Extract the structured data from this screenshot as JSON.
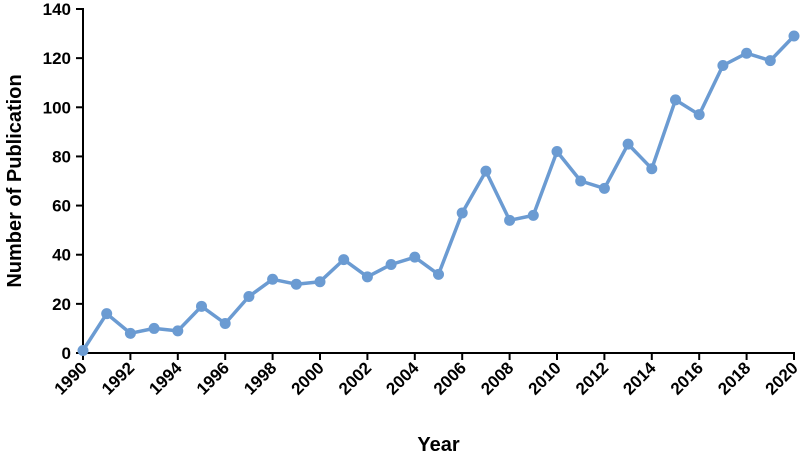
{
  "chart_data": {
    "type": "line",
    "xlabel": "Year",
    "ylabel": "Number of Publication",
    "ylim": [
      0,
      140
    ],
    "xlim": [
      1990,
      2020
    ],
    "y_ticks": [
      0,
      20,
      40,
      60,
      80,
      100,
      120,
      140
    ],
    "x_ticks": [
      1990,
      1992,
      1994,
      1996,
      1998,
      2000,
      2002,
      2004,
      2006,
      2008,
      2010,
      2012,
      2014,
      2016,
      2018,
      2020
    ],
    "x_tick_labels": [
      "1990",
      "1992",
      "1994",
      "1996",
      "1998",
      "2000",
      "2002",
      "2004",
      "2006",
      "2008",
      "2010",
      "2012",
      "2014",
      "2016",
      "2018",
      "2020"
    ],
    "y_tick_labels": [
      "0",
      "20",
      "40",
      "60",
      "80",
      "100",
      "120",
      "140"
    ],
    "grid": false,
    "legend": "none",
    "series_color": "#6b9bd2",
    "series": [
      {
        "x": [
          1990,
          1991,
          1992,
          1993,
          1994,
          1995,
          1996,
          1997,
          1998,
          1999,
          2000,
          2001,
          2002,
          2003,
          2004,
          2005,
          2006,
          2007,
          2008,
          2009,
          2010,
          2011,
          2012,
          2013,
          2014,
          2015,
          2016,
          2017,
          2018,
          2019,
          2020
        ],
        "values": [
          1,
          16,
          8,
          10,
          9,
          19,
          12,
          23,
          30,
          28,
          29,
          38,
          31,
          36,
          39,
          32,
          57,
          74,
          54,
          56,
          82,
          70,
          67,
          85,
          75,
          103,
          97,
          117,
          122,
          119,
          129
        ]
      }
    ]
  }
}
